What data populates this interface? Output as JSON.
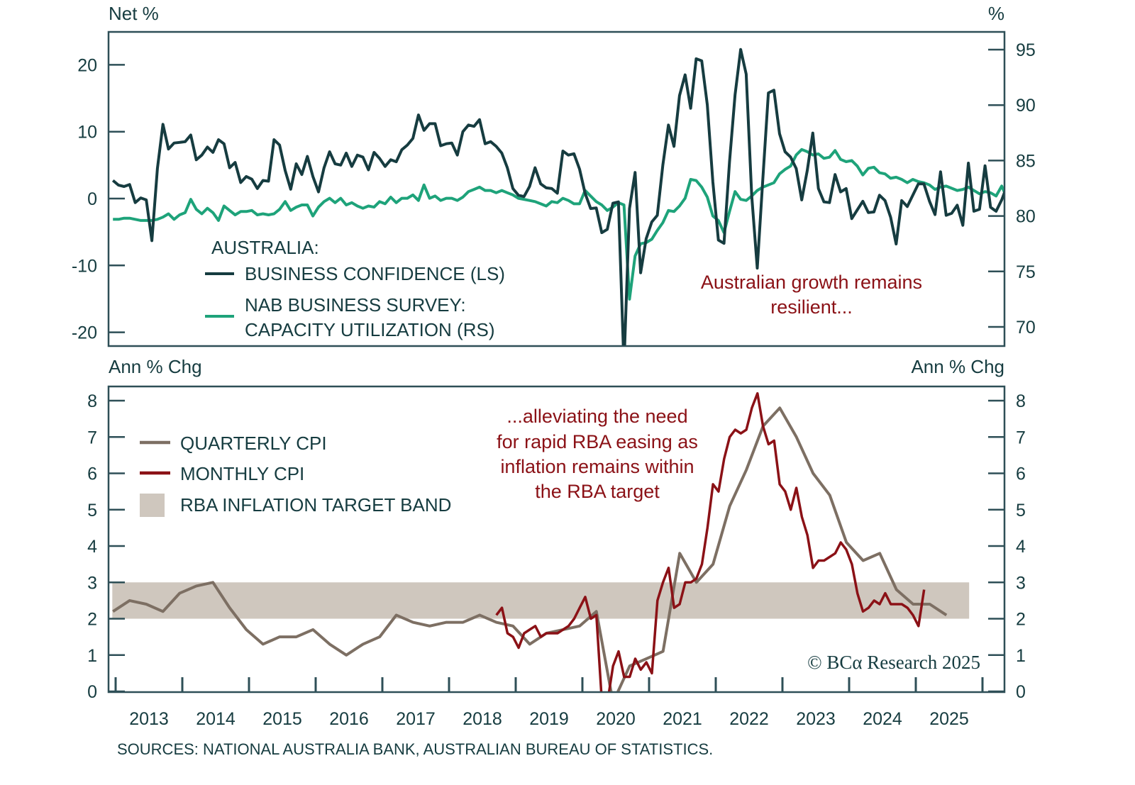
{
  "chart_data": [
    {
      "type": "line",
      "panel": "top",
      "title": "",
      "left_unit_label": "Net %",
      "right_unit_label": "%",
      "left_ylim": [
        -22,
        25
      ],
      "right_ylim": [
        67,
        97
      ],
      "left_ticks": [
        20,
        10,
        0,
        -10,
        -20
      ],
      "left_tick_labels": [
        "20",
        "10",
        "0",
        "-10",
        "-20"
      ],
      "right_ticks": [
        95,
        90,
        85,
        80,
        75,
        70
      ],
      "right_tick_labels": [
        "95",
        "90",
        "85",
        "80",
        "75",
        "70"
      ],
      "legend": {
        "heading": "AUSTRALIA:",
        "entries": [
          {
            "label": "BUSINESS CONFIDENCE (LS)",
            "color": "#163c40"
          },
          {
            "label_lines": [
              "NAB BUSINESS SURVEY:",
              "CAPACITY UTILIZATION (RS)"
            ],
            "color": "#1ea37a"
          }
        ],
        "placement": "bottom-left"
      },
      "annotation": [
        "Australian growth remains",
        "resilient..."
      ],
      "series": [
        {
          "name": "Business Confidence (LS)",
          "axis": "left",
          "color": "#163c40",
          "x_start": 2012.96,
          "x_step": 0.0833,
          "values": [
            2.7,
            2,
            1.8,
            2.1,
            -0.6,
            0.1,
            -0.2,
            -6.3,
            4.5,
            11.1,
            7.4,
            8.3,
            8.4,
            8.5,
            9.5,
            5.8,
            6.5,
            7.7,
            6.9,
            8.8,
            8.2,
            4.6,
            5.4,
            2.4,
            3.3,
            2.9,
            1.5,
            2.7,
            2.6,
            8.8,
            8.0,
            4.2,
            1.4,
            5.2,
            3.6,
            6.3,
            3.3,
            1.0,
            4.6,
            7.0,
            5.2,
            5.0,
            6.8,
            4.8,
            6.5,
            6.2,
            4.3,
            6.9,
            6.0,
            4.8,
            5.8,
            5.5,
            7.3,
            8.0,
            9.0,
            12.5,
            10.2,
            11.2,
            11.2,
            7.9,
            8.2,
            8.3,
            6.5,
            10.0,
            11.0,
            10.8,
            11.8,
            8.2,
            8.5,
            7.8,
            6.8,
            4.6,
            1.5,
            0.5,
            0.3,
            1.8,
            4.6,
            2.2,
            1.6,
            1.5,
            0.8,
            7.1,
            6.5,
            6.7,
            4.4,
            0.8,
            -1.5,
            -1.4,
            -5.1,
            -4.6,
            -0.7,
            -0.5,
            -25,
            -1.5,
            3.9,
            -11.1,
            -6.0,
            -3.5,
            -2.5,
            5.0,
            11.0,
            7.8,
            15.4,
            18.5,
            13.5,
            20.9,
            20.6,
            14.0,
            2.5,
            -6.2,
            -6.7,
            5.5,
            15.5,
            22.3,
            18.6,
            0.4,
            -10.4,
            3.0,
            15.8,
            16.2,
            9.7,
            7.0,
            6.2,
            4.5,
            -0.2,
            4.2,
            9.8,
            1.5,
            -0.5,
            -0.6,
            3.6,
            1.0,
            1.5,
            -3.0,
            -1.7,
            -0.4,
            -2.1,
            -2.0,
            0.5,
            -0.3,
            -2.8,
            -6.8,
            -0.3,
            -1.2,
            0.5,
            2.2,
            2.2,
            -0.4,
            -2.4,
            4.0,
            -2.5,
            -2.2,
            -1.0,
            -4.0,
            5.3,
            -1.9,
            -1.6,
            4.9,
            -1.3,
            -1.9,
            -0.2,
            2.0,
            4.5,
            7.3
          ]
        },
        {
          "name": "NAB Business Survey: Capacity Utilization (RS)",
          "axis": "right",
          "color": "#1ea37a",
          "x_start": 2012.96,
          "x_step": 0.0833,
          "values": [
            79.7,
            79.7,
            79.8,
            79.8,
            79.7,
            79.6,
            79.6,
            79.6,
            79.7,
            79.9,
            80.2,
            79.7,
            80.1,
            80.3,
            81.5,
            80.6,
            80.2,
            80.7,
            80.3,
            79.6,
            80.9,
            80.5,
            80.1,
            80.4,
            80.4,
            80.5,
            80.1,
            80.2,
            80.1,
            80.2,
            80.6,
            81.3,
            80.5,
            80.8,
            81.0,
            81.0,
            80.0,
            80.8,
            81.3,
            81.6,
            81.2,
            81.6,
            81.0,
            81.2,
            80.9,
            80.7,
            80.9,
            80.8,
            81.3,
            81.1,
            81.7,
            81.2,
            81.6,
            81.6,
            81.9,
            81.4,
            82.8,
            81.6,
            81.8,
            81.4,
            81.6,
            81.6,
            81.4,
            81.7,
            82.2,
            82.4,
            82.6,
            82.3,
            82.3,
            82.1,
            82.3,
            82.1,
            81.9,
            81.6,
            81.5,
            81.4,
            81.3,
            81.1,
            80.9,
            81.3,
            81.2,
            81.6,
            81.4,
            81.1,
            81.1,
            82.3,
            81.8,
            81.3,
            81.0,
            80.5,
            80.8,
            81.2,
            81.0,
            72.5,
            76.4,
            77.5,
            77.6,
            77.9,
            78.7,
            79.4,
            80.5,
            80.4,
            80.9,
            81.6,
            83.3,
            83.2,
            82.6,
            81.7,
            80.0,
            79.6,
            78.5,
            80.4,
            82.2,
            81.5,
            81.4,
            81.8,
            82.3,
            82.6,
            82.8,
            83.0,
            83.8,
            84.2,
            84.5,
            85.5,
            86.0,
            85.8,
            85.5,
            85.6,
            85.2,
            85.3,
            85.9,
            85.1,
            84.9,
            85.0,
            84.5,
            83.7,
            84.3,
            84.4,
            83.9,
            83.8,
            83.4,
            83.5,
            83.3,
            83.0,
            83.3,
            83.1,
            83.0,
            82.8,
            82.4,
            82.6,
            82.7,
            82.5,
            82.3,
            82.4,
            82.6,
            82.3,
            82.0,
            82.2,
            82.1,
            81.8,
            82.7,
            81.6,
            82.3,
            83.1,
            82.4
          ]
        }
      ]
    },
    {
      "type": "line",
      "panel": "bottom",
      "title": "",
      "left_unit_label": "Ann % Chg",
      "right_unit_label": "Ann % Chg",
      "ylim": [
        0,
        8.4
      ],
      "y_ticks": [
        0,
        1,
        2,
        3,
        4,
        5,
        6,
        7,
        8
      ],
      "y_tick_labels": [
        "0",
        "1",
        "2",
        "3",
        "4",
        "5",
        "6",
        "7",
        "8"
      ],
      "x_tick_labels": [
        "2013",
        "2014",
        "2015",
        "2016",
        "2017",
        "2018",
        "2019",
        "2020",
        "2021",
        "2022",
        "2023",
        "2024",
        "2025"
      ],
      "xlim": [
        2012.9,
        2026.35
      ],
      "legend": {
        "entries": [
          {
            "label": "QUARTERLY CPI",
            "color": "#7d6f63",
            "kind": "line"
          },
          {
            "label": "MONTHLY CPI",
            "color": "#8b1116",
            "kind": "line"
          },
          {
            "label": "RBA INFLATION TARGET BAND",
            "color": "#cfc7be",
            "kind": "band"
          }
        ],
        "placement": "top-left"
      },
      "band": {
        "label": "RBA Inflation Target Band",
        "y_range": [
          2,
          3
        ],
        "x_range": [
          2012.95,
          2025.8
        ]
      },
      "annotation": [
        "...alleviating the need",
        "for rapid RBA easing as",
        "inflation remains within",
        "the RBA target"
      ],
      "series": [
        {
          "name": "Quarterly CPI",
          "color": "#7d6f63",
          "x": [
            2012.96,
            2013.21,
            2013.46,
            2013.71,
            2013.96,
            2014.21,
            2014.46,
            2014.71,
            2014.96,
            2015.21,
            2015.46,
            2015.71,
            2015.96,
            2016.21,
            2016.46,
            2016.71,
            2016.96,
            2017.21,
            2017.46,
            2017.71,
            2017.96,
            2018.21,
            2018.46,
            2018.71,
            2018.96,
            2019.21,
            2019.46,
            2019.71,
            2019.96,
            2020.21,
            2020.46,
            2020.71,
            2020.96,
            2021.21,
            2021.46,
            2021.71,
            2021.96,
            2022.21,
            2022.46,
            2022.71,
            2022.96,
            2023.21,
            2023.46,
            2023.71,
            2023.96,
            2024.21,
            2024.46,
            2024.71,
            2024.96,
            2025.21,
            2025.46
          ],
          "values": [
            2.2,
            2.5,
            2.4,
            2.2,
            2.7,
            2.9,
            3.0,
            2.3,
            1.7,
            1.3,
            1.5,
            1.5,
            1.7,
            1.3,
            1.0,
            1.3,
            1.5,
            2.1,
            1.9,
            1.8,
            1.9,
            1.9,
            2.1,
            1.9,
            1.8,
            1.3,
            1.6,
            1.7,
            1.8,
            2.2,
            -0.3,
            0.7,
            0.9,
            1.1,
            3.8,
            3.0,
            3.5,
            5.1,
            6.1,
            7.3,
            7.8,
            7.0,
            6.0,
            5.4,
            4.1,
            3.6,
            3.8,
            2.8,
            2.4,
            2.4,
            2.1
          ]
        },
        {
          "name": "Monthly CPI",
          "color": "#8b1116",
          "x_start": 2018.71,
          "x_step": 0.0833,
          "values": [
            2.1,
            2.3,
            1.6,
            1.5,
            1.2,
            1.6,
            1.7,
            1.8,
            1.5,
            1.6,
            1.6,
            1.6,
            1.7,
            1.8,
            2.0,
            2.3,
            2.6,
            2.0,
            2.1,
            -0.3,
            -0.3,
            0.7,
            1.1,
            0.4,
            0.4,
            0.9,
            0.6,
            0.8,
            0.5,
            2.5,
            3.0,
            3.4,
            2.3,
            2.4,
            3.0,
            3.0,
            3.1,
            3.5,
            4.5,
            5.7,
            5.5,
            6.4,
            7.0,
            7.2,
            7.1,
            7.2,
            7.8,
            8.2,
            7.3,
            6.8,
            6.9,
            5.7,
            5.5,
            5.0,
            5.6,
            4.8,
            4.3,
            3.4,
            3.6,
            3.6,
            3.7,
            3.8,
            4.1,
            3.9,
            3.5,
            2.7,
            2.2,
            2.3,
            2.5,
            2.4,
            2.7,
            2.4,
            2.4,
            2.4,
            2.3,
            2.1,
            1.8,
            2.8
          ]
        }
      ]
    }
  ],
  "footer": {
    "sources": "SOURCES: NATIONAL AUSTRALIA BANK, AUSTRALIAN BUREAU OF STATISTICS.",
    "copyright": "© BCα Research 2025"
  },
  "colors": {
    "frame": "#2e4f57",
    "text": "#163c40",
    "annotation": "#8b1116",
    "band": "#cfc7be"
  }
}
